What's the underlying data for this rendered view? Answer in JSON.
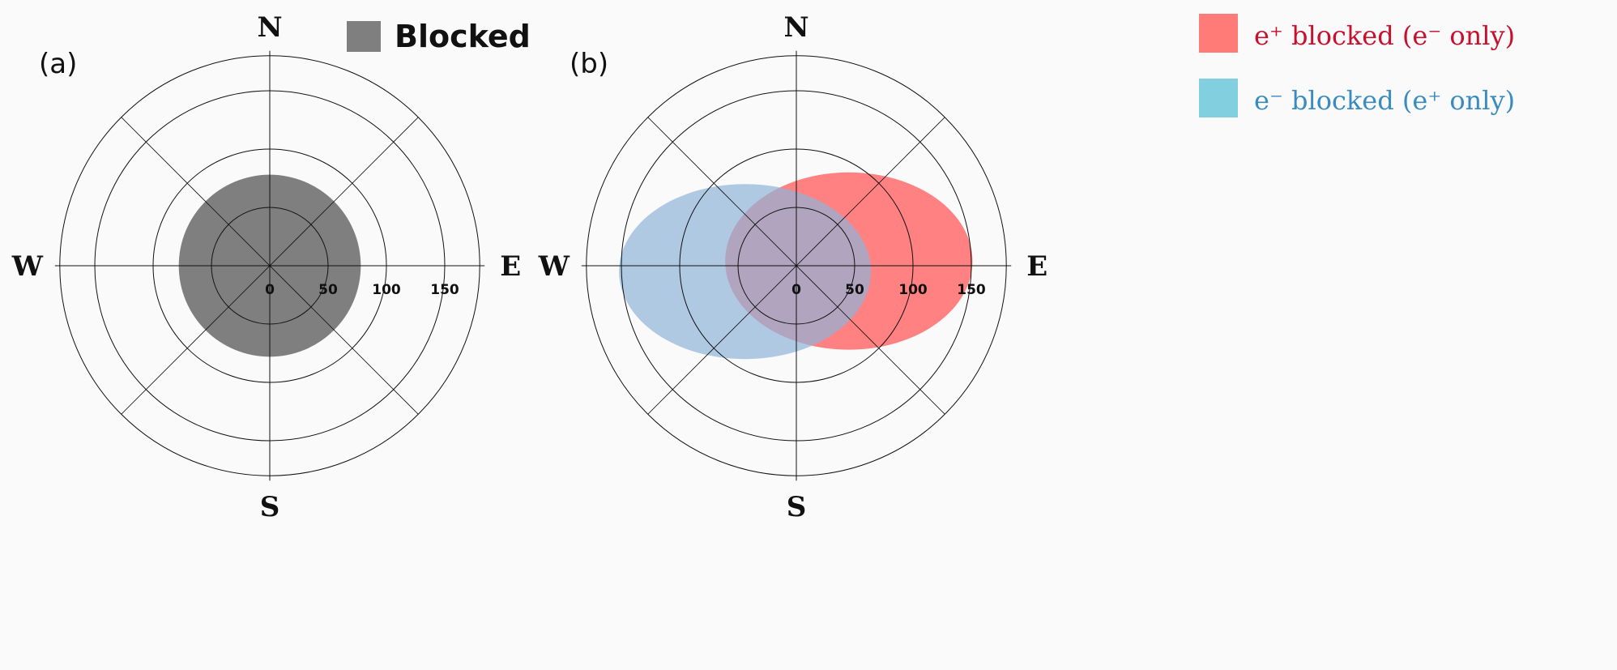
{
  "panels": [
    {
      "label": "(a)",
      "compass": {
        "n": "N",
        "s": "S",
        "e": "E",
        "w": "W"
      },
      "radial_ticks": [
        "0",
        "50",
        "100",
        "150"
      ],
      "rings": [
        50,
        100,
        150,
        180
      ],
      "legend": [
        {
          "label": "Blocked",
          "color": "#7f7f7f"
        }
      ],
      "regions": [
        {
          "name": "blocked",
          "shape": "circle",
          "center": [
            0,
            0
          ],
          "radius": 78,
          "color": "#7f7f7f"
        }
      ]
    },
    {
      "label": "(b)",
      "compass": {
        "n": "N",
        "s": "S",
        "e": "E",
        "w": "W"
      },
      "radial_ticks": [
        "0",
        "50",
        "100",
        "150"
      ],
      "rings": [
        50,
        100,
        150,
        180
      ],
      "legend": [
        {
          "label": "e⁺ blocked (e⁻ only)",
          "color": "#ff6b6b",
          "text_color": "#c8102e"
        },
        {
          "label": "e⁻ blocked (e⁺ only)",
          "color": "#7ec8e0",
          "text_color": "#3a8cc0"
        }
      ],
      "regions": [
        {
          "name": "e-plus-blocked",
          "shape": "ellipse",
          "center": [
            45,
            4
          ],
          "radii": [
            106,
            76
          ],
          "color": "#ff6b6b"
        },
        {
          "name": "e-minus-blocked",
          "shape": "ellipse",
          "center": [
            -44,
            -5
          ],
          "radii": [
            108,
            75
          ],
          "color": "#8fb4d8"
        }
      ]
    }
  ]
}
